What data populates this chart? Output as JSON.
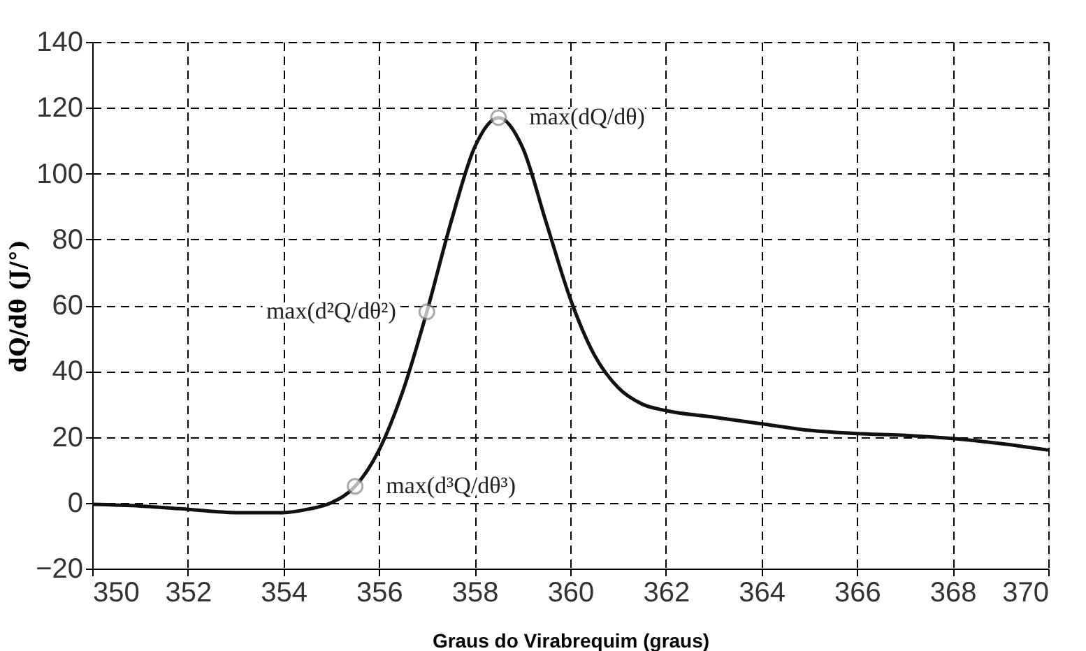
{
  "chart_data": {
    "type": "line",
    "xlabel": "Graus do Virabrequim (graus)",
    "ylabel": "dQ/dθ (J/°)",
    "x": [
      350,
      351,
      352,
      353,
      354,
      354.5,
      355,
      355.5,
      356,
      356.5,
      357,
      357.5,
      358,
      358.5,
      359,
      359.5,
      360,
      360.5,
      361,
      361.5,
      362,
      363,
      364,
      365,
      366,
      367,
      368,
      369,
      370
    ],
    "series": [
      {
        "color": "#111111",
        "values": [
          -0.5,
          -1,
          -2,
          -3,
          -3,
          -2,
          0,
          5,
          16,
          34,
          58,
          85,
          108,
          117,
          108,
          85,
          62,
          45,
          35,
          30,
          28,
          26,
          24,
          22,
          21,
          20.5,
          19.5,
          18,
          16
        ]
      }
    ],
    "xlim": [
      350,
      370
    ],
    "xticks": [
      350,
      352,
      354,
      356,
      358,
      360,
      362,
      364,
      366,
      368,
      370
    ],
    "ylim": [
      -20,
      140
    ],
    "yticks": [
      -20,
      0,
      20,
      40,
      60,
      80,
      100,
      120,
      140
    ],
    "grid": true,
    "marker": "none",
    "line_style": "solid",
    "annotations": [
      {
        "text": "max(dQ/dθ)",
        "x": 358.5,
        "y": 117
      },
      {
        "text": "max(d³Q/dθ³)",
        "x": 355.5,
        "y": 5
      },
      {
        "text": "max(d²Q/dθ²)",
        "x": 357,
        "y": 58
      }
    ]
  }
}
